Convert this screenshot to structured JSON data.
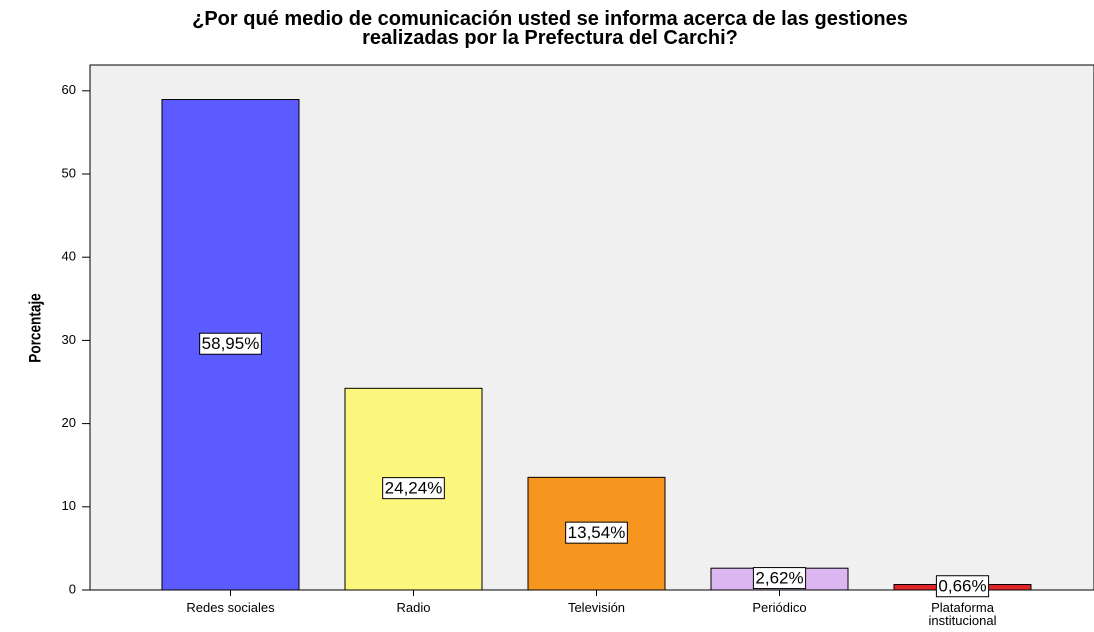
{
  "chart_data": {
    "type": "bar",
    "title": "¿Por qué medio de comunicación usted se informa acerca de las gestiones realizadas por la Prefectura del Carchi?",
    "y_label": "Porcentaje",
    "categories": [
      "Redes sociales",
      "Radio",
      "Televisión",
      "Periódico",
      "Plataforma institucional"
    ],
    "values": [
      58.95,
      24.24,
      13.54,
      2.62,
      0.66
    ],
    "value_labels": [
      "58,95%",
      "24,24%",
      "13,54%",
      "2,62%",
      "0,66%"
    ],
    "colors": [
      "#5b5bff",
      "#fbf67c",
      "#f7961f",
      "#dcb6f0",
      "#e02626"
    ],
    "ylim": [
      0,
      63.1
    ],
    "yticks": [
      0,
      10,
      20,
      30,
      40,
      50,
      60
    ],
    "grid": false
  }
}
